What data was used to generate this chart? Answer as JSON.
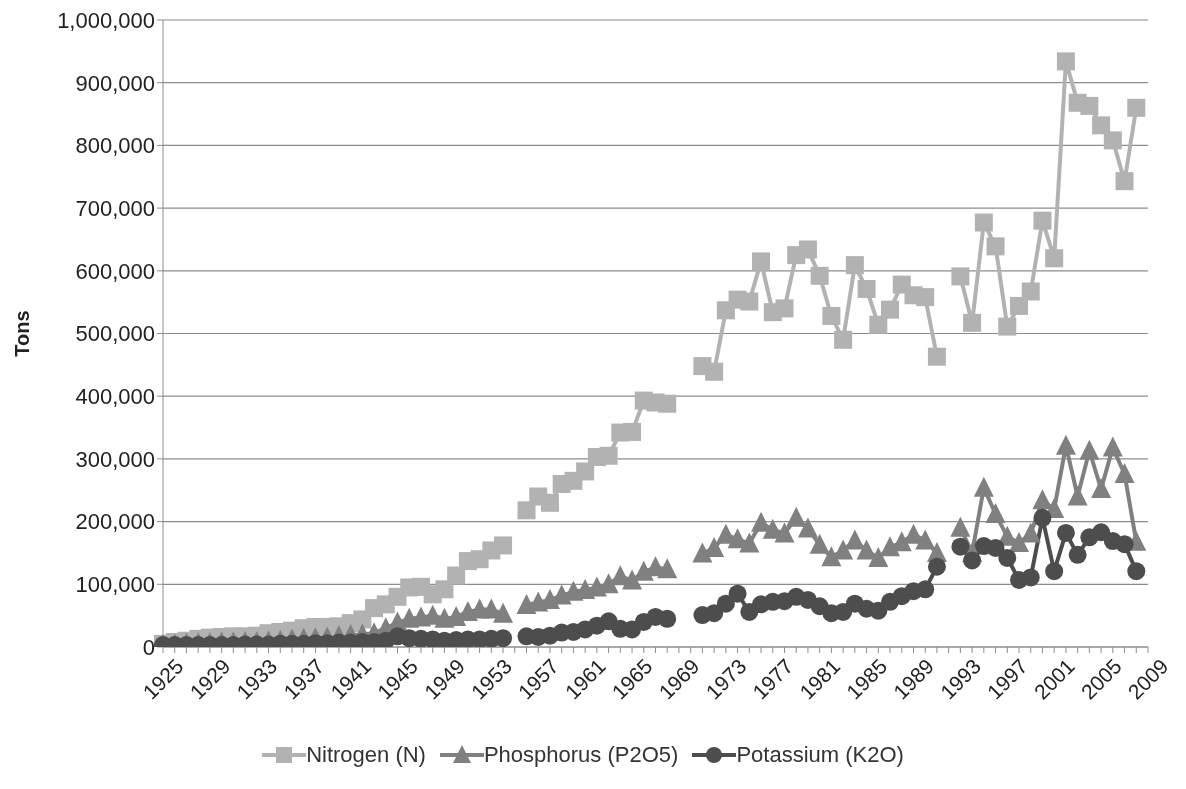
{
  "chart_data": {
    "type": "line",
    "ylabel": "Tons",
    "categories": [
      "1925",
      null,
      null,
      null,
      "1929",
      null,
      null,
      null,
      "1933",
      null,
      null,
      null,
      "1937",
      null,
      null,
      null,
      "1941",
      null,
      null,
      null,
      "1945",
      null,
      null,
      null,
      "1949",
      null,
      null,
      null,
      "1953",
      null,
      null,
      null,
      "1957",
      null,
      null,
      null,
      "1961",
      null,
      null,
      null,
      "1965",
      null,
      null,
      null,
      "1969",
      null,
      null,
      null,
      "1973",
      null,
      null,
      null,
      "1977",
      null,
      null,
      null,
      "1981",
      null,
      null,
      null,
      "1985",
      null,
      null,
      null,
      "1989",
      null,
      null,
      null,
      "1993",
      null,
      null,
      null,
      "1997",
      null,
      null,
      null,
      "2001",
      null,
      null,
      null,
      "2005",
      null,
      null,
      null,
      "2009"
    ],
    "series": [
      {
        "name": "Nitrogen (N)",
        "color": "#b2b2b2",
        "marker": "square",
        "values": [
          5000,
          8000,
          10000,
          13000,
          15000,
          16000,
          17000,
          17000,
          18000,
          22000,
          24000,
          26000,
          30000,
          32000,
          32000,
          33000,
          38000,
          44000,
          62000,
          68000,
          80000,
          95000,
          96000,
          84000,
          92000,
          114000,
          137000,
          140000,
          154000,
          162000,
          null,
          218000,
          240000,
          230000,
          260000,
          265000,
          280000,
          303000,
          305000,
          342000,
          343000,
          393000,
          390000,
          388000,
          null,
          null,
          448000,
          439000,
          537000,
          554000,
          551000,
          615000,
          534000,
          540000,
          625000,
          634000,
          592000,
          528000,
          490000,
          609000,
          571000,
          514000,
          538000,
          578000,
          561000,
          558000,
          463000,
          null,
          591000,
          517000,
          677000,
          639000,
          511000,
          544000,
          567000,
          680000,
          620000,
          934000,
          868000,
          863000,
          832000,
          808000,
          743000,
          860000,
          null
        ]
      },
      {
        "name": "Phosphorus (P2O5)",
        "color": "#808080",
        "marker": "triangle",
        "values": [
          3000,
          4000,
          5000,
          6000,
          6000,
          7000,
          7000,
          8000,
          8000,
          9000,
          10000,
          12000,
          13000,
          14000,
          15000,
          17000,
          19000,
          20000,
          22000,
          30000,
          39000,
          45000,
          47000,
          50000,
          45000,
          48000,
          56000,
          60000,
          60000,
          53000,
          null,
          67000,
          71000,
          75000,
          82000,
          88000,
          91000,
          95000,
          100000,
          113000,
          106000,
          120000,
          127000,
          124000,
          null,
          null,
          149000,
          158000,
          179000,
          172000,
          165000,
          198000,
          187000,
          181000,
          206000,
          189000,
          163000,
          143000,
          154000,
          170000,
          154000,
          142000,
          159000,
          167000,
          179000,
          170000,
          150000,
          null,
          190000,
          150000,
          254000,
          212000,
          176000,
          166000,
          181000,
          234000,
          220000,
          321000,
          240000,
          313000,
          252000,
          318000,
          276000,
          168000,
          null
        ]
      },
      {
        "name": "Potassium (K2O)",
        "color": "#4d4d4d",
        "marker": "circle",
        "values": [
          3000,
          3000,
          3000,
          3000,
          3000,
          3000,
          3000,
          4000,
          4000,
          4000,
          5000,
          5000,
          5000,
          6000,
          6000,
          7000,
          7000,
          8000,
          8000,
          10000,
          17000,
          14000,
          13000,
          12000,
          10000,
          11000,
          12000,
          12000,
          13000,
          14000,
          null,
          17000,
          16000,
          18000,
          23000,
          24000,
          28000,
          34000,
          41000,
          29000,
          28000,
          40000,
          48000,
          45000,
          null,
          null,
          51000,
          54000,
          69000,
          85000,
          56000,
          68000,
          72000,
          73000,
          80000,
          75000,
          65000,
          54000,
          56000,
          69000,
          61000,
          58000,
          72000,
          81000,
          89000,
          92000,
          128000,
          null,
          160000,
          138000,
          161000,
          158000,
          142000,
          107000,
          111000,
          206000,
          121000,
          182000,
          147000,
          175000,
          183000,
          169000,
          164000,
          121000,
          null
        ]
      }
    ],
    "ylim": [
      0,
      1000000
    ],
    "yticks": [
      0,
      {
        "value": 100000,
        "label": "100,000"
      },
      {
        "value": 200000,
        "label": "200,000"
      },
      {
        "value": 300000,
        "label": "300,000"
      },
      {
        "value": 400000,
        "label": "400,000"
      },
      {
        "value": 500000,
        "label": "500,000"
      },
      {
        "value": 600000,
        "label": "600,000"
      },
      {
        "value": 700000,
        "label": "700,000"
      },
      {
        "value": 800000,
        "label": "800,000"
      },
      {
        "value": 900000,
        "label": "900,000"
      },
      {
        "value": 1000000,
        "label": "1,000,000"
      }
    ],
    "grid": "y",
    "legend": "bottom",
    "line_style": "solid"
  }
}
